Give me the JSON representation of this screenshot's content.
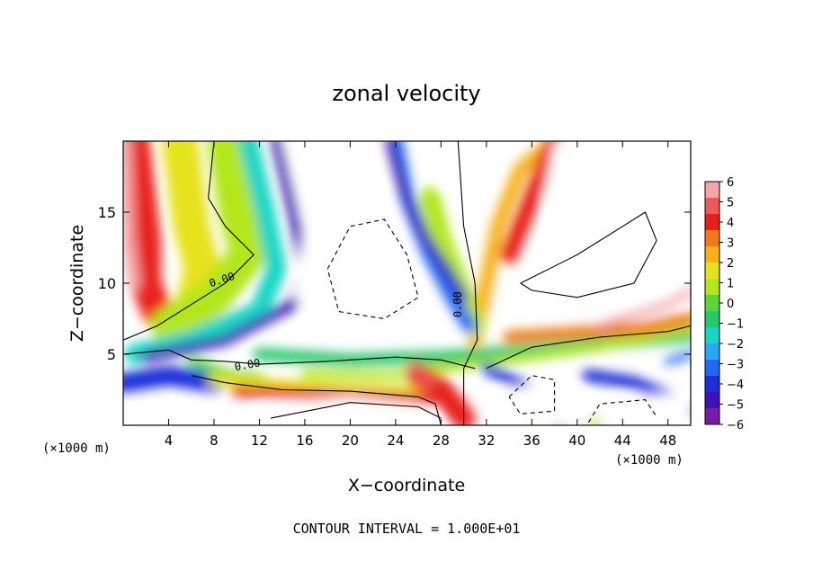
{
  "chart_data": {
    "type": "heatmap",
    "title": "zonal velocity",
    "xlabel": "X−coordinate",
    "ylabel": "Z−coordinate",
    "x_unit_left": "(×1000 m)",
    "x_unit_right": "(×1000 m)",
    "footer": "CONTOUR INTERVAL = 1.000E+01",
    "xlim": [
      0,
      50
    ],
    "ylim": [
      0,
      20
    ],
    "x_ticks": [
      "4",
      "8",
      "12",
      "16",
      "20",
      "24",
      "28",
      "32",
      "36",
      "40",
      "44",
      "48"
    ],
    "y_ticks": [
      "5",
      "10",
      "15"
    ],
    "contour_labels": [
      "0.00",
      "0.00",
      "0.00"
    ],
    "colorbar": {
      "ticks": [
        "6",
        "5",
        "4",
        "3",
        "2",
        "1",
        "0",
        "−1",
        "−2",
        "−3",
        "−4",
        "−5",
        "−6"
      ],
      "colors": [
        "#f6a6a6",
        "#ee5a5a",
        "#e8201c",
        "#f07a18",
        "#f7b01a",
        "#e6e21c",
        "#b4e61e",
        "#5cd43a",
        "#26c86a",
        "#18d6c4",
        "#28a8f0",
        "#2268f0",
        "#1e2ed8",
        "#3e12b4",
        "#7a1aa8"
      ]
    }
  }
}
